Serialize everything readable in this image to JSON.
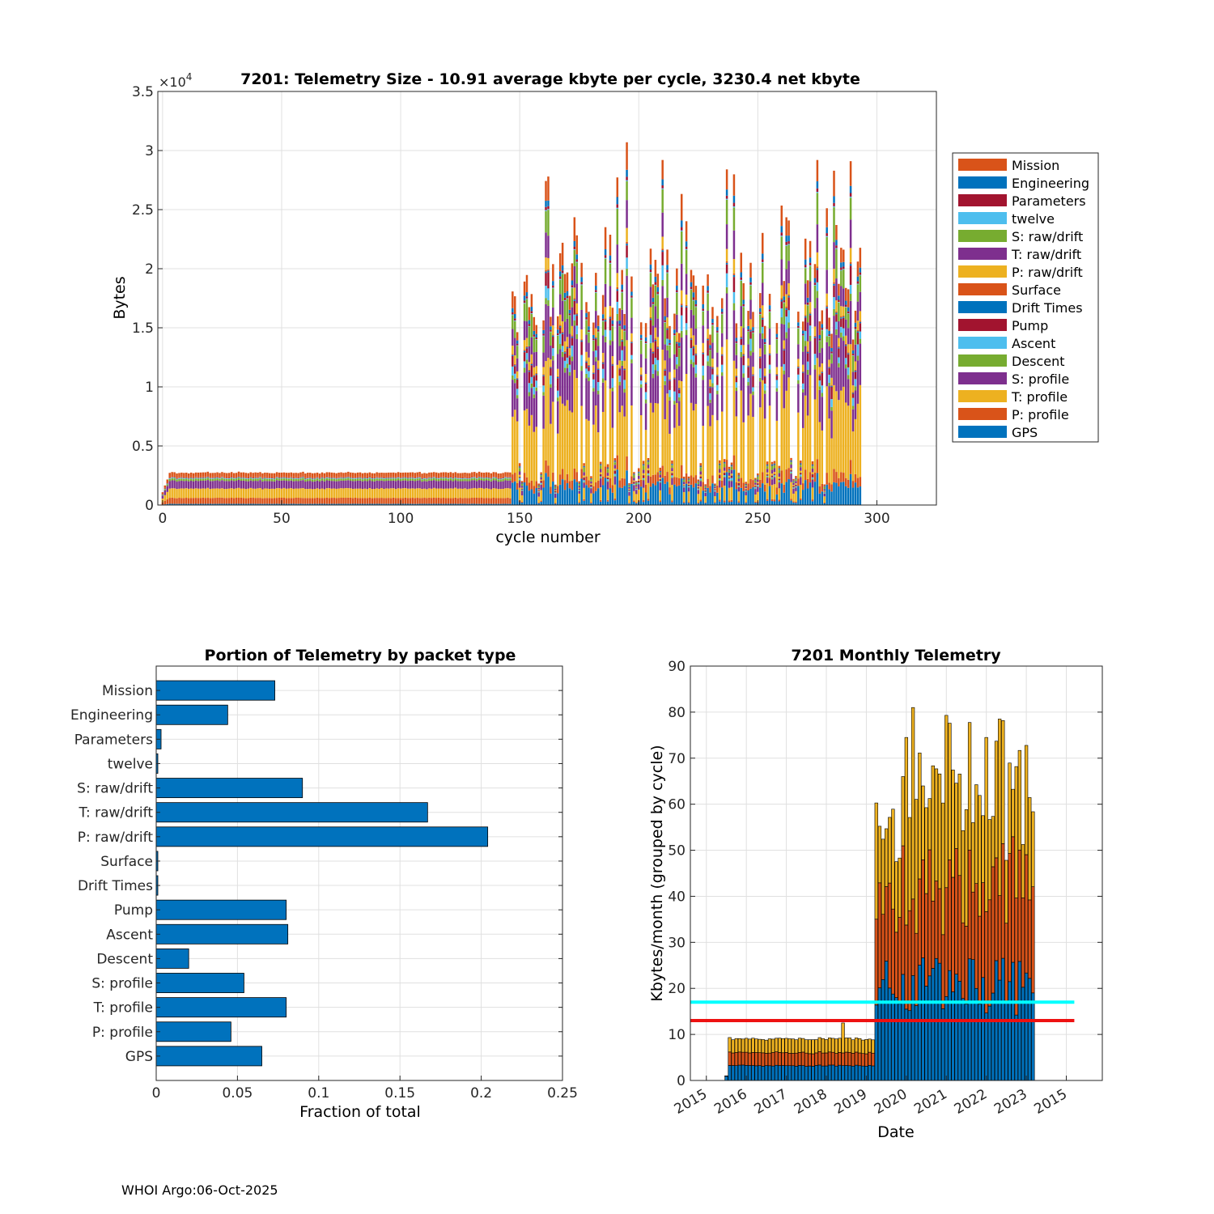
{
  "footer": "WHOI Argo:06-Oct-2025",
  "colors": {
    "Mission": "#D95319",
    "Engineering": "#0072BD",
    "Parameters": "#A2142F",
    "twelve": "#4DBEEE",
    "S: raw/drift": "#77AC30",
    "T: raw/drift": "#7E2F8E",
    "P: raw/drift": "#EDB120",
    "Surface": "#D95319",
    "Drift Times": "#0072BD",
    "Pump": "#A2142F",
    "Ascent": "#4DBEEE",
    "Descent": "#77AC30",
    "S: profile": "#7E2F8E",
    "T: profile": "#EDB120",
    "P: profile": "#D95319",
    "GPS": "#0072BD",
    "cyan_line": "#00FFFF",
    "red_line": "#EE1111"
  },
  "chart_data": [
    {
      "type": "bar",
      "stacked": true,
      "title": "7201: Telemetry Size - 10.91 average kbyte per cycle, 3230.4 net kbyte",
      "xlabel": "cycle number",
      "ylabel": "Bytes",
      "exponent_label": "×10",
      "exponent_power": "4",
      "xlim": [
        -2,
        325
      ],
      "ylim": [
        0,
        35000
      ],
      "xticks": [
        0,
        50,
        100,
        150,
        200,
        250,
        300
      ],
      "xtick_labels": [
        "0",
        "50",
        "100",
        "150",
        "200",
        "250",
        "300"
      ],
      "yticks": [
        0,
        5000,
        10000,
        15000,
        20000,
        25000,
        30000,
        35000
      ],
      "ytick_labels": [
        "0",
        "0.5",
        "1",
        "1.5",
        "2",
        "2.5",
        "3",
        "3.5"
      ],
      "legend_position": "right-outside",
      "legend": [
        "Mission",
        "Engineering",
        "Parameters",
        "twelve",
        "S: raw/drift",
        "T: raw/drift",
        "P: raw/drift",
        "Surface",
        "Drift Times",
        "Pump",
        "Ascent",
        "Descent",
        "S: profile",
        "T: profile",
        "P: profile",
        "GPS"
      ],
      "cycles": {
        "first": 0,
        "last": 293,
        "low_phase_end": 146
      },
      "low_phase_stack": {
        "GPS": 100,
        "P: profile": 500,
        "T: profile": 800,
        "S: profile": 650,
        "Descent": 180,
        "Ascent": 60,
        "Pump": 40,
        "Surface": 60,
        "Mission": 350
      },
      "high_phase_typical_total": [
        14000,
        29000
      ],
      "peak_values": [
        {
          "cycle": 195,
          "total": 30700
        },
        {
          "cycle": 210,
          "total": 29200
        },
        {
          "cycle": 275,
          "total": 29200
        },
        {
          "cycle": 289,
          "total": 29100
        },
        {
          "cycle": 162,
          "total": 27800
        }
      ]
    },
    {
      "type": "bar",
      "orientation": "horizontal",
      "title": "Portion of Telemetry by packet type",
      "xlabel": "Fraction of total",
      "xlim": [
        0,
        0.25
      ],
      "xticks": [
        0,
        0.05,
        0.1,
        0.15,
        0.2,
        0.25
      ],
      "xtick_labels": [
        "0",
        "0.05",
        "0.1",
        "0.15",
        "0.2",
        "0.25"
      ],
      "categories": [
        "Mission",
        "Engineering",
        "Parameters",
        "twelve",
        "S: raw/drift",
        "T: raw/drift",
        "P: raw/drift",
        "Surface",
        "Drift Times",
        "Pump",
        "Ascent",
        "Descent",
        "S: profile",
        "T: profile",
        "P: profile",
        "GPS"
      ],
      "values": [
        0.073,
        0.044,
        0.003,
        0.001,
        0.09,
        0.167,
        0.204,
        0.001,
        0.001,
        0.08,
        0.081,
        0.02,
        0.054,
        0.08,
        0.046,
        0.065
      ]
    },
    {
      "type": "bar",
      "stacked": true,
      "title": "7201 Monthly Telemetry",
      "xlabel": "Date",
      "ylabel": "Kbytes/month (grouped by cycle)",
      "ylim": [
        0,
        90
      ],
      "yticks": [
        0,
        10,
        20,
        30,
        40,
        50,
        60,
        70,
        80,
        90
      ],
      "xtick_labels": [
        "2015",
        "2016",
        "2017",
        "2018",
        "2019",
        "2020",
        "2021",
        "2022",
        "2023",
        "2015"
      ],
      "series": [
        {
          "name": "blue",
          "low_phase_value": 3.2,
          "high_phase_range": [
            14,
            27
          ]
        },
        {
          "name": "orange",
          "low_phase_value": 2.8,
          "high_phase_range": [
            14,
            28
          ]
        },
        {
          "name": "yellow",
          "low_phase_value": 3.0,
          "high_phase_range": [
            10,
            30
          ]
        }
      ],
      "months": {
        "start": "2015-07",
        "low_phase_until": "2019-03",
        "end": "2023-03"
      },
      "peak_values": [
        {
          "date": "2020-03",
          "total": 81
        },
        {
          "date": "2021-01",
          "total": 79.3
        },
        {
          "date": "2022-05",
          "total": 78.5
        },
        {
          "date": "2020-01",
          "total": 74.5
        },
        {
          "date": "2022-01",
          "total": 74.5
        }
      ],
      "hlines": [
        {
          "value": 17,
          "color": "cyan"
        },
        {
          "value": 13,
          "color": "red"
        }
      ]
    }
  ]
}
